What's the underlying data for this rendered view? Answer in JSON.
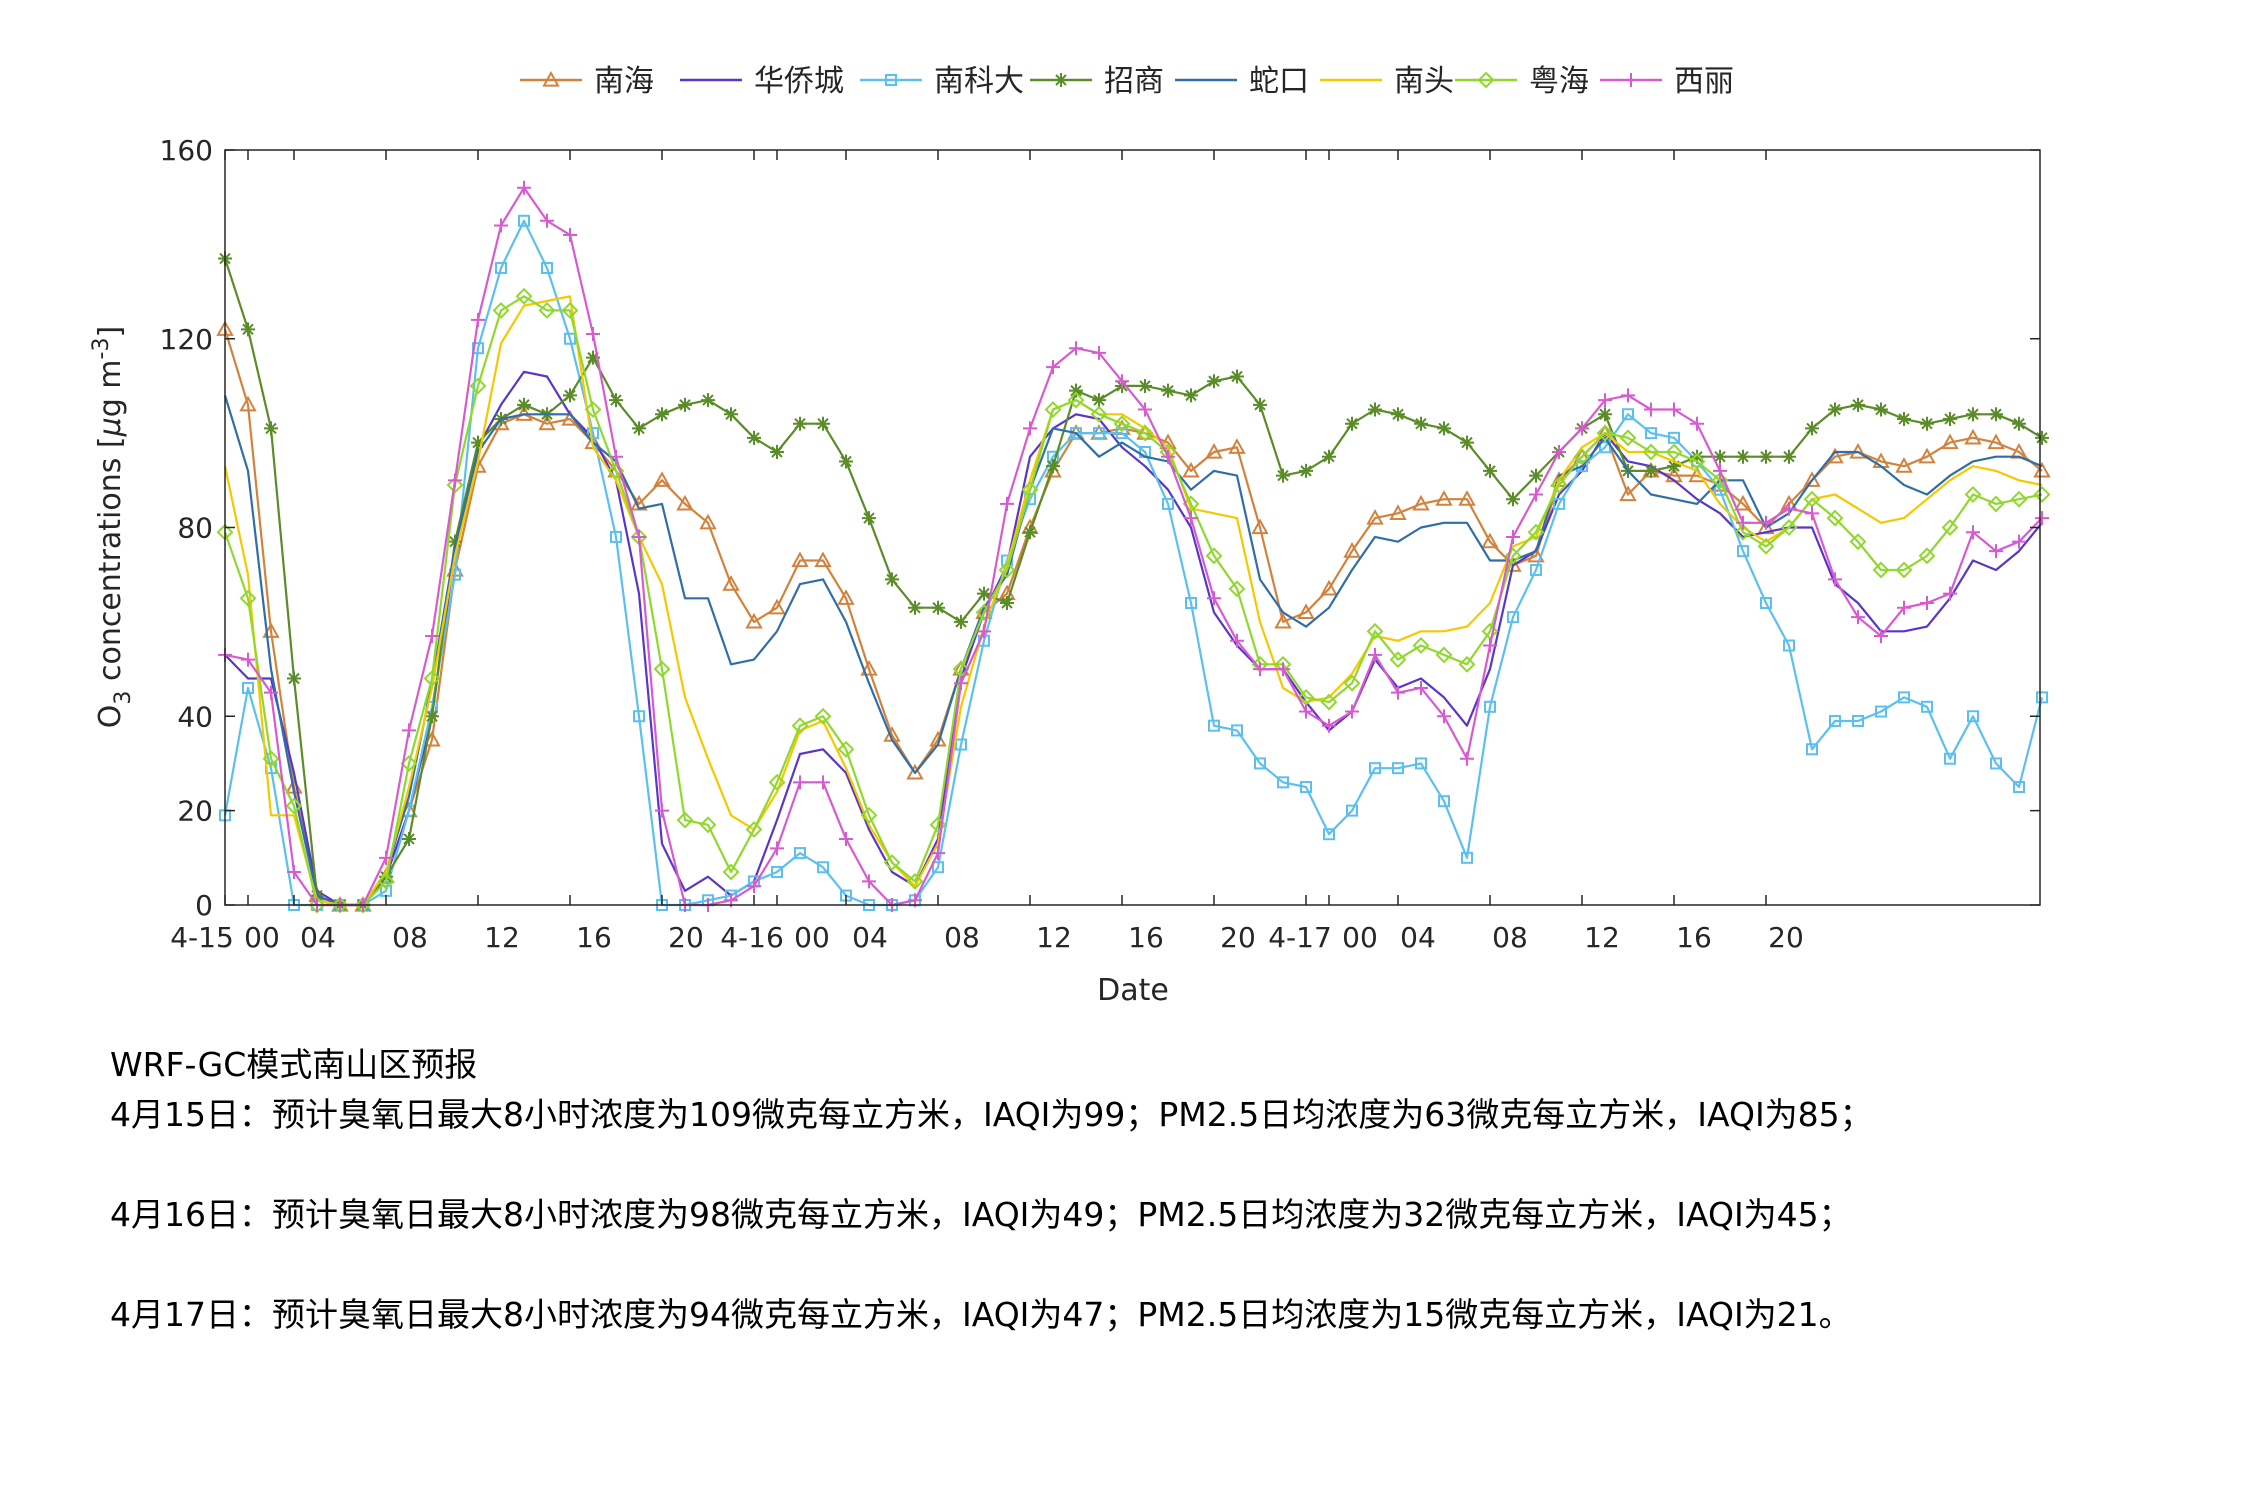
{
  "chart_data": {
    "type": "line",
    "xlabel": "Date",
    "ylabel": "O3 concentrations [μg m-3]",
    "ylim": [
      0,
      160
    ],
    "yticks": [
      0,
      20,
      40,
      80,
      120,
      160
    ],
    "x_tick_labels": [
      "4-15",
      "00",
      "04",
      "08",
      "12",
      "16",
      "20",
      "4-16",
      "00",
      "04",
      "08",
      "12",
      "16",
      "20",
      "4-17",
      "00",
      "04",
      "08",
      "12",
      "16",
      "20"
    ],
    "legend_position": "top-center",
    "grid": false,
    "series": [
      {
        "name": "南海",
        "color": "#D2823C",
        "marker": "triangle",
        "values": [
          122,
          106,
          58,
          25,
          2,
          0,
          0,
          6,
          20,
          35,
          71,
          93,
          102,
          104,
          102,
          103,
          98,
          92,
          85,
          90,
          85,
          81,
          68,
          60,
          63,
          73,
          73,
          65,
          50,
          36,
          28,
          35,
          50,
          62,
          66,
          80,
          92,
          100,
          100,
          101,
          100,
          98,
          92,
          96,
          97,
          80,
          60,
          62,
          67,
          75,
          82,
          83,
          85,
          86,
          86,
          77,
          72,
          74,
          90,
          95,
          100,
          87,
          92,
          91,
          91,
          89,
          85,
          80,
          85,
          90,
          95,
          96,
          94,
          93,
          95,
          98,
          99,
          98,
          96,
          92
        ]
      },
      {
        "name": "华侨城",
        "color": "#5A36C8",
        "values": [
          53,
          48,
          48,
          28,
          3,
          0,
          0,
          6,
          20,
          40,
          75,
          97,
          106,
          113,
          112,
          104,
          99,
          90,
          66,
          13,
          3,
          6,
          2,
          5,
          18,
          32,
          33,
          28,
          16,
          7,
          4,
          14,
          48,
          62,
          72,
          95,
          101,
          104,
          103,
          97,
          93,
          88,
          80,
          62,
          55,
          50,
          50,
          43,
          37,
          41,
          52,
          46,
          48,
          44,
          38,
          50,
          72,
          75,
          87,
          92,
          100,
          94,
          93,
          90,
          86,
          83,
          78,
          79,
          80,
          80,
          68,
          64,
          58,
          58,
          59,
          65,
          73,
          71,
          75,
          81
        ]
      },
      {
        "name": "南科大",
        "color": "#5BC0EE",
        "marker": "square",
        "values": [
          19,
          46,
          29,
          0,
          0,
          0,
          0,
          3,
          20,
          42,
          70,
          118,
          135,
          145,
          135,
          120,
          100,
          78,
          40,
          0,
          0,
          1,
          2,
          5,
          7,
          11,
          8,
          2,
          0,
          0,
          1,
          8,
          34,
          56,
          73,
          86,
          95,
          100,
          100,
          100,
          96,
          85,
          64,
          38,
          37,
          30,
          26,
          25,
          15,
          20,
          29,
          29,
          30,
          22,
          10,
          42,
          61,
          71,
          85,
          93,
          97,
          104,
          100,
          99,
          94,
          88,
          75,
          64,
          55,
          33,
          39,
          39,
          41,
          44,
          42,
          31,
          40,
          30,
          25,
          44
        ]
      },
      {
        "name": "招商",
        "color": "#5A8C28",
        "marker": "star",
        "values": [
          137,
          122,
          101,
          48,
          2,
          0,
          0,
          6,
          14,
          40,
          77,
          98,
          103,
          106,
          104,
          108,
          116,
          107,
          101,
          104,
          106,
          107,
          104,
          99,
          96,
          102,
          102,
          94,
          82,
          69,
          63,
          63,
          60,
          66,
          64,
          79,
          93,
          109,
          107,
          110,
          110,
          109,
          108,
          111,
          112,
          106,
          91,
          92,
          95,
          102,
          105,
          104,
          102,
          101,
          98,
          92,
          86,
          91,
          96,
          101,
          104,
          92,
          92,
          93,
          95,
          95,
          95,
          95,
          95,
          101,
          105,
          106,
          105,
          103,
          102,
          103,
          104,
          104,
          102,
          99
        ]
      },
      {
        "name": "蛇口",
        "color": "#2F6EA8",
        "values": [
          108,
          92,
          50,
          24,
          2,
          0,
          0,
          7,
          23,
          47,
          76,
          96,
          103,
          104,
          104,
          104,
          98,
          94,
          84,
          85,
          65,
          65,
          51,
          52,
          58,
          68,
          69,
          60,
          47,
          35,
          28,
          34,
          50,
          63,
          70,
          88,
          101,
          100,
          95,
          98,
          95,
          94,
          88,
          92,
          91,
          69,
          62,
          59,
          63,
          71,
          78,
          77,
          80,
          81,
          81,
          73,
          73,
          75,
          91,
          93,
          99,
          92,
          87,
          86,
          85,
          90,
          90,
          80,
          83,
          90,
          96,
          96,
          93,
          89,
          87,
          91,
          94,
          95,
          95,
          93
        ]
      },
      {
        "name": "南头",
        "color": "#F5C800",
        "values": [
          93,
          70,
          19,
          19,
          1,
          0,
          0,
          7,
          25,
          46,
          74,
          94,
          119,
          127,
          128,
          129,
          97,
          90,
          78,
          68,
          44,
          31,
          19,
          16,
          24,
          37,
          39,
          29,
          17,
          9,
          4,
          13,
          42,
          59,
          72,
          90,
          105,
          107,
          104,
          104,
          101,
          97,
          84,
          83,
          82,
          60,
          46,
          43,
          44,
          49,
          57,
          56,
          58,
          58,
          59,
          64,
          76,
          78,
          90,
          97,
          100,
          96,
          96,
          94,
          92,
          85,
          80,
          77,
          80,
          86,
          87,
          84,
          81,
          82,
          86,
          90,
          93,
          92,
          90,
          89
        ]
      },
      {
        "name": "粤海",
        "color": "#90D82E",
        "marker": "diamond",
        "values": [
          79,
          65,
          31,
          21,
          0,
          0,
          0,
          5,
          30,
          48,
          89,
          110,
          126,
          129,
          126,
          126,
          105,
          92,
          78,
          50,
          18,
          17,
          7,
          16,
          26,
          38,
          40,
          33,
          19,
          9,
          5,
          17,
          50,
          62,
          71,
          88,
          105,
          107,
          104,
          102,
          100,
          96,
          85,
          74,
          67,
          51,
          51,
          44,
          43,
          47,
          58,
          52,
          55,
          53,
          51,
          58,
          74,
          79,
          89,
          95,
          100,
          99,
          96,
          96,
          94,
          90,
          79,
          76,
          80,
          86,
          82,
          77,
          71,
          71,
          74,
          80,
          87,
          85,
          86,
          87
        ]
      },
      {
        "name": "西丽",
        "color": "#D85AD0",
        "marker": "plus",
        "values": [
          53,
          52,
          45,
          7,
          0,
          0,
          0,
          10,
          37,
          57,
          90,
          124,
          144,
          152,
          145,
          142,
          121,
          95,
          78,
          20,
          0,
          0,
          1,
          4,
          12,
          26,
          26,
          14,
          5,
          0,
          1,
          11,
          47,
          58,
          85,
          101,
          114,
          118,
          117,
          111,
          105,
          95,
          82,
          65,
          56,
          50,
          50,
          41,
          38,
          41,
          53,
          45,
          46,
          40,
          31,
          55,
          78,
          87,
          96,
          101,
          107,
          108,
          105,
          105,
          102,
          92,
          81,
          81,
          84,
          83,
          69,
          61,
          57,
          63,
          64,
          66,
          79,
          75,
          77,
          82
        ]
      }
    ]
  },
  "report": {
    "title": "WRF-GC模式南山区预报",
    "day1": "4月15日：预计臭氧日最大8小时浓度为109微克每立方米，IAQI为99；PM2.5日均浓度为63微克每立方米，IAQI为85；",
    "day2": "4月16日：预计臭氧日最大8小时浓度为98微克每立方米，IAQI为49；PM2.5日均浓度为32微克每立方米，IAQI为45；",
    "day3": "4月17日：预计臭氧日最大8小时浓度为94微克每立方米，IAQI为47；PM2.5日均浓度为15微克每立方米，IAQI为21。"
  }
}
